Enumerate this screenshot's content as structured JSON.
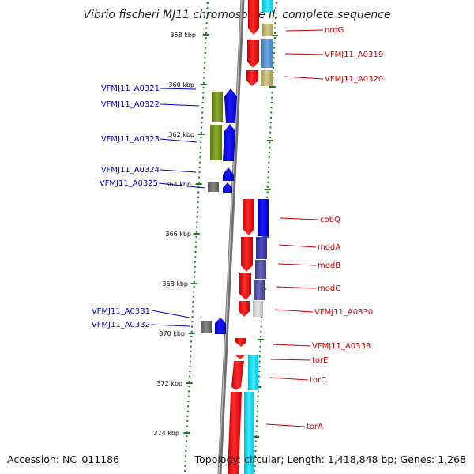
{
  "title": "Vibrio fischeri MJ11 chromosome II, complete sequence",
  "footer": {
    "accession": "Accession: NC_011186",
    "summary": "Topology: circular; Length: 1,418,848 bp; Genes: 1,268"
  },
  "colors": {
    "background": "#ffffff",
    "backbone": "#8a8a8a",
    "forward_strand": "#e60000",
    "reverse_strand": "#0000e6",
    "left_label": "#0000cc",
    "right_label": "#cc0000",
    "tick": "#1a7a1a"
  },
  "scale": {
    "unit": "kbp",
    "ticks": [
      {
        "value": 358,
        "label": "358 kbp"
      },
      {
        "value": 360,
        "label": "360 kbp"
      },
      {
        "value": 362,
        "label": "362 kbp"
      },
      {
        "value": 364,
        "label": "364 kbp"
      },
      {
        "value": 366,
        "label": "366 kbp"
      },
      {
        "value": 368,
        "label": "368 kbp"
      },
      {
        "value": 370,
        "label": "370 kbp"
      },
      {
        "value": 372,
        "label": "372 kbp"
      },
      {
        "value": 374,
        "label": "374 kbp"
      }
    ]
  },
  "genes": {
    "left": [
      {
        "name": "VFMJ11_A0321"
      },
      {
        "name": "VFMJ11_A0322"
      },
      {
        "name": "VFMJ11_A0323"
      },
      {
        "name": "VFMJ11_A0324"
      },
      {
        "name": "VFMJ11_A0325"
      },
      {
        "name": "VFMJ11_A0331"
      },
      {
        "name": "VFMJ11_A0332"
      }
    ],
    "right": [
      {
        "name": "nrdG"
      },
      {
        "name": "VFMJ11_A0319"
      },
      {
        "name": "VFMJ11_A0320"
      },
      {
        "name": "cobQ"
      },
      {
        "name": "modA"
      },
      {
        "name": "modB"
      },
      {
        "name": "modC"
      },
      {
        "name": "VFMJ11_A0330"
      },
      {
        "name": "VFMJ11_A0333"
      },
      {
        "name": "torE"
      },
      {
        "name": "torC"
      },
      {
        "name": "torA"
      }
    ]
  }
}
